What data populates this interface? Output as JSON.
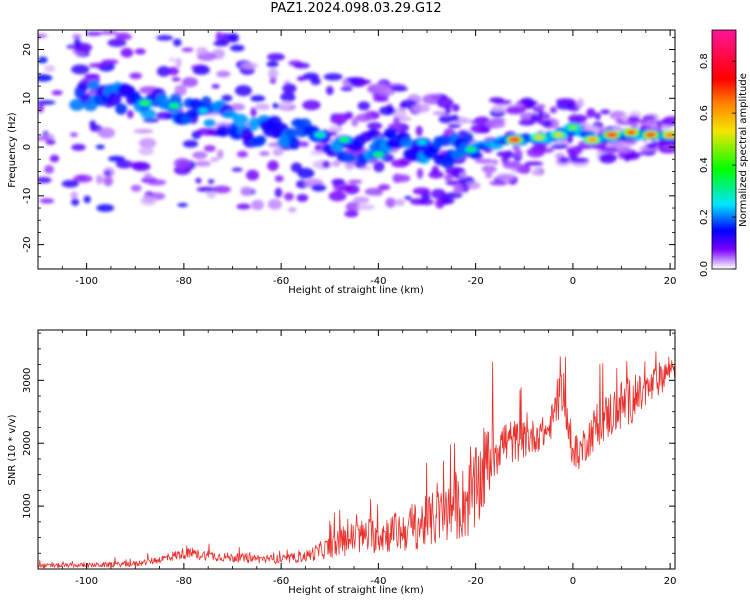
{
  "figure": {
    "title": "PAZ1.2024.098.03.29.G12"
  },
  "chart_data": [
    {
      "type": "heatmap",
      "xlabel": "Height of straight line (km)",
      "ylabel": "Frequency (Hz)",
      "xlim": [
        -110,
        21
      ],
      "ylim": [
        -25,
        24
      ],
      "xticks": [
        -100,
        -80,
        -60,
        -40,
        -20,
        0,
        20
      ],
      "yticks": [
        -20,
        -10,
        0,
        10,
        20
      ],
      "colorbar": {
        "label": "Normalized spectral amplitude",
        "range": [
          0,
          0.92
        ],
        "ticks": [
          0.0,
          0.2,
          0.4,
          0.6,
          0.8
        ],
        "colormap": "gist_ncar-like",
        "stops": [
          "#ffffff",
          "#7a00ff",
          "#0000ff",
          "#00e5ff",
          "#00ff00",
          "#f5e400",
          "#ff7f00",
          "#ff0000",
          "#ff1493"
        ]
      },
      "ridge": [
        {
          "x": -95,
          "y": 10
        },
        {
          "x": -85,
          "y": 9
        },
        {
          "x": -75,
          "y": 7
        },
        {
          "x": -65,
          "y": 3
        },
        {
          "x": -55,
          "y": 2.5
        },
        {
          "x": -45,
          "y": 0
        },
        {
          "x": -35,
          "y": 1
        },
        {
          "x": -25,
          "y": -1
        },
        {
          "x": -18,
          "y": 0.5
        },
        {
          "x": -12,
          "y": 1.5
        },
        {
          "x": -5,
          "y": 2
        },
        {
          "x": 0,
          "y": 3.5
        },
        {
          "x": 5,
          "y": 1.5
        },
        {
          "x": 10,
          "y": 2.5
        },
        {
          "x": 15,
          "y": 2.5
        },
        {
          "x": 21,
          "y": 2.5
        }
      ],
      "peaks": [
        {
          "x": -88,
          "y": 9,
          "v": 0.45
        },
        {
          "x": -82,
          "y": 8.5,
          "v": 0.4
        },
        {
          "x": -76,
          "y": 7.5,
          "v": 0.3
        },
        {
          "x": -52,
          "y": 2.5,
          "v": 0.35
        },
        {
          "x": -47,
          "y": 1.5,
          "v": 0.4
        },
        {
          "x": -40,
          "y": -1.5,
          "v": 0.4
        },
        {
          "x": -31,
          "y": 1,
          "v": 0.3
        },
        {
          "x": -21,
          "y": -0.5,
          "v": 0.4
        },
        {
          "x": -12,
          "y": 1.5,
          "v": 0.9
        },
        {
          "x": -7,
          "y": 2,
          "v": 0.6
        },
        {
          "x": -3,
          "y": 2.5,
          "v": 0.6
        },
        {
          "x": 0,
          "y": 4,
          "v": 0.5
        },
        {
          "x": 4,
          "y": 1.5,
          "v": 0.7
        },
        {
          "x": 8,
          "y": 2.5,
          "v": 0.9
        },
        {
          "x": 12,
          "y": 3,
          "v": 0.8
        },
        {
          "x": 16,
          "y": 2.5,
          "v": 0.85
        },
        {
          "x": 20,
          "y": 2.5,
          "v": 0.75
        }
      ]
    },
    {
      "type": "line",
      "xlabel": "Height of straight line (km)",
      "ylabel": "SNR (10 * v/v)",
      "xlim": [
        -110,
        21
      ],
      "ylim": [
        0,
        3800
      ],
      "xticks": [
        -100,
        -80,
        -60,
        -40,
        -20,
        0,
        20
      ],
      "yticks": [
        1000,
        2000,
        3000
      ],
      "color": "#e8312c",
      "series": [
        {
          "x": [
            -110,
            -100,
            -90,
            -85,
            -80,
            -70,
            -60,
            -55,
            -50,
            -45,
            -40,
            -35,
            -30,
            -25,
            -20,
            -17,
            -15,
            -10,
            -5,
            -2,
            0,
            5,
            10,
            15,
            20,
            21
          ],
          "y_mean": [
            50,
            60,
            80,
            150,
            250,
            180,
            150,
            200,
            350,
            500,
            550,
            600,
            750,
            900,
            1200,
            1800,
            2000,
            2050,
            2200,
            2900,
            1700,
            2300,
            2600,
            2800,
            3200,
            3250
          ],
          "y_noise": [
            60,
            60,
            80,
            100,
            150,
            120,
            120,
            150,
            300,
            450,
            500,
            550,
            700,
            800,
            1200,
            1000,
            700,
            500,
            400,
            600,
            400,
            600,
            700,
            500,
            400,
            400
          ]
        }
      ]
    }
  ]
}
